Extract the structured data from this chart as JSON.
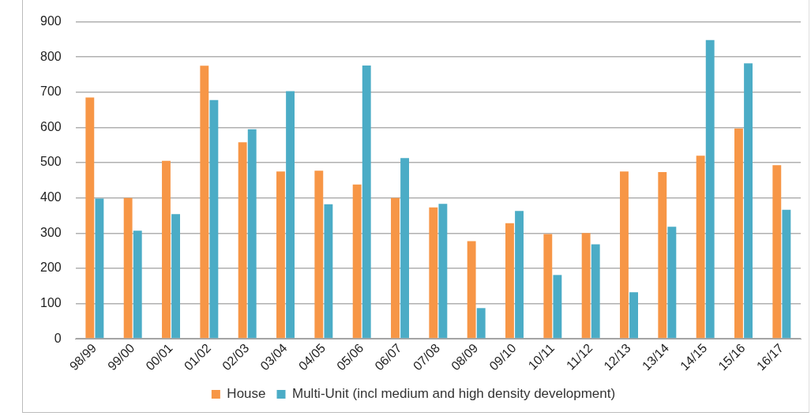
{
  "chart_data": {
    "type": "bar",
    "categories": [
      "98/99",
      "99/00",
      "00/01",
      "01/02",
      "02/03",
      "03/04",
      "04/05",
      "05/06",
      "06/07",
      "07/08",
      "08/09",
      "09/10",
      "10/11",
      "11/12",
      "12/13",
      "13/14",
      "14/15",
      "15/16",
      "16/17"
    ],
    "series": [
      {
        "name": "House",
        "color": "#f79646",
        "values": [
          685,
          400,
          505,
          775,
          558,
          475,
          477,
          438,
          400,
          373,
          277,
          328,
          297,
          300,
          475,
          473,
          520,
          597,
          493
        ]
      },
      {
        "name": "Multi-Unit (incl medium and high density development)",
        "color": "#4bacc6",
        "values": [
          398,
          307,
          354,
          678,
          595,
          703,
          382,
          776,
          513,
          383,
          87,
          363,
          181,
          268,
          132,
          318,
          848,
          782,
          366
        ]
      }
    ],
    "ylim": [
      0,
      900
    ],
    "yticks": [
      0,
      100,
      200,
      300,
      400,
      500,
      600,
      700,
      800,
      900
    ],
    "grid": "y",
    "legend": "bottom"
  }
}
